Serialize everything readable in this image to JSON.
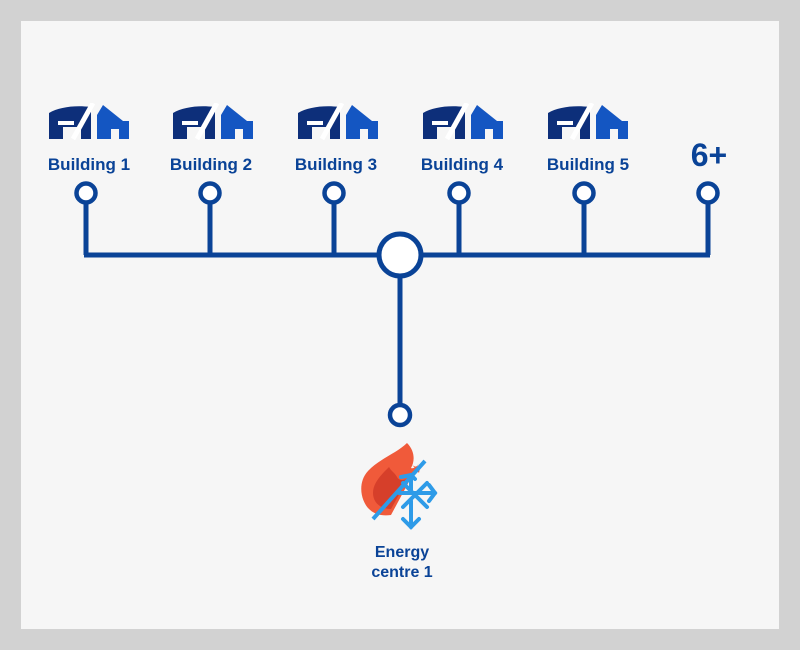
{
  "colors": {
    "line": "#0a4397",
    "icon_dark": "#0d2f7a",
    "icon_light": "#1456c2",
    "flame_outer": "#f05a3a",
    "flame_inner": "#d63f2a",
    "snow": "#2e9be8",
    "panel": "#f6f6f6"
  },
  "diagram": {
    "buildings": [
      {
        "label": "Building 1",
        "icon": "house-icon"
      },
      {
        "label": "Building 2",
        "icon": "house-icon"
      },
      {
        "label": "Building 3",
        "icon": "house-icon"
      },
      {
        "label": "Building 4",
        "icon": "house-icon"
      },
      {
        "label": "Building 5",
        "icon": "house-icon"
      }
    ],
    "more_label": "6+",
    "energy_centre": {
      "line1": "Energy",
      "line2": "centre 1",
      "icon": "flame-snowflake-icon"
    }
  }
}
